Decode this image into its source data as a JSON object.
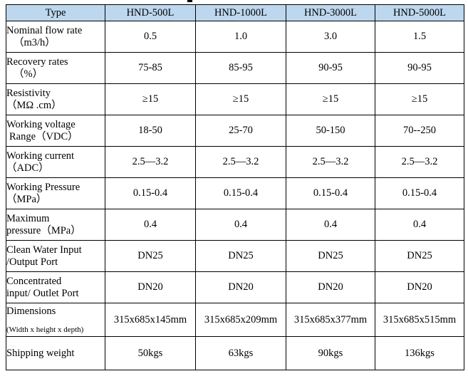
{
  "table": {
    "headers": [
      "Type",
      "HND-500L",
      "HND-1000L",
      "HND-3000L",
      "HND-5000L"
    ],
    "rows": [
      {
        "label_lines": [
          "Nominal flow rate",
          "（m3/h）"
        ],
        "values": [
          "0.5",
          "1.0",
          "3.0",
          "1.5"
        ]
      },
      {
        "label_lines": [
          "Recovery rates",
          "（%）"
        ],
        "values": [
          "75-85",
          "85-95",
          "90-95",
          "90-95"
        ]
      },
      {
        "label_lines": [
          "Resistivity",
          "（MΩ .cm）"
        ],
        "values": [
          "≥15",
          "≥15",
          "≥15",
          "≥15"
        ]
      },
      {
        "label_lines": [
          "Working voltage",
          "Range（VDC）"
        ],
        "values": [
          "18-50",
          "25-70",
          "50-150",
          "70--250"
        ]
      },
      {
        "label_lines": [
          "Working current",
          "（ADC）"
        ],
        "values": [
          "2.5—3.2",
          "2.5—3.2",
          "2.5—3.2",
          "2.5—3.2"
        ]
      },
      {
        "label_lines": [
          "Working Pressure",
          "（MPa）"
        ],
        "values": [
          "0.15-0.4",
          "0.15-0.4",
          "0.15-0.4",
          "0.15-0.4"
        ]
      },
      {
        "label_lines": [
          "Maximum",
          "pressure（MPa）"
        ],
        "values": [
          "0.4",
          "0.4",
          "0.4",
          "0.4"
        ]
      },
      {
        "label_lines": [
          "Clean Water Input",
          "/Output Port"
        ],
        "values": [
          "DN25",
          "DN25",
          "DN25",
          "DN25"
        ]
      },
      {
        "label_lines": [
          "Concentrated",
          "input/ Outlet Port"
        ],
        "values": [
          "DN20",
          "DN20",
          "DN20",
          "DN20"
        ]
      },
      {
        "label_lines": [
          "Dimensions",
          "(Width x height x depth)"
        ],
        "values": [
          "315x685x145mm",
          "315x685x209mm",
          "315x685x377mm",
          "315x685x515mm"
        ]
      },
      {
        "label_lines": [
          "Shipping weight"
        ],
        "values": [
          "50kgs",
          "63kgs",
          "90kgs",
          "136kgs"
        ]
      }
    ]
  },
  "colors": {
    "header_background": "#bdd7ee",
    "border": "#000000",
    "text": "#000000"
  }
}
